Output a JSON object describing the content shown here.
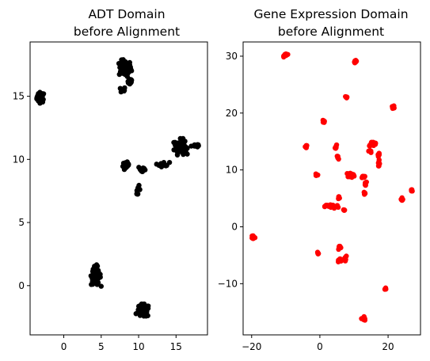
{
  "chart_data": [
    {
      "type": "scatter",
      "title_line1": "ADT Domain",
      "title_line2": "before Alignment",
      "xlabel": "",
      "ylabel": "",
      "xlim": [
        -4.5,
        19.2
      ],
      "ylim": [
        -3.9,
        19.3
      ],
      "x_ticks": [
        0,
        5,
        10,
        15
      ],
      "y_ticks": [
        0,
        5,
        10,
        15
      ],
      "grid": false,
      "marker_color": "#000000",
      "clusters": [
        {
          "x": -3.1,
          "y": 14.9,
          "rx": 0.55,
          "ry": 0.45,
          "n": 45
        },
        {
          "x": 8.2,
          "y": 17.2,
          "rx": 0.9,
          "ry": 0.7,
          "n": 70
        },
        {
          "x": 7.9,
          "y": 15.5,
          "rx": 0.35,
          "ry": 0.25,
          "n": 12
        },
        {
          "x": 8.8,
          "y": 16.2,
          "rx": 0.45,
          "ry": 0.3,
          "n": 18
        },
        {
          "x": 15.6,
          "y": 11.0,
          "rx": 0.9,
          "ry": 0.65,
          "n": 70
        },
        {
          "x": 17.5,
          "y": 11.1,
          "rx": 0.5,
          "ry": 0.15,
          "n": 10
        },
        {
          "x": 13.3,
          "y": 9.6,
          "rx": 0.9,
          "ry": 0.2,
          "n": 22
        },
        {
          "x": 8.3,
          "y": 9.5,
          "rx": 0.45,
          "ry": 0.3,
          "n": 18
        },
        {
          "x": 10.5,
          "y": 9.2,
          "rx": 0.6,
          "ry": 0.3,
          "n": 16
        },
        {
          "x": 9.9,
          "y": 7.6,
          "rx": 0.35,
          "ry": 0.35,
          "n": 10
        },
        {
          "x": 4.3,
          "y": 0.8,
          "rx": 0.7,
          "ry": 0.85,
          "n": 75
        },
        {
          "x": 10.6,
          "y": -2.0,
          "rx": 0.95,
          "ry": 0.55,
          "n": 75
        }
      ]
    },
    {
      "type": "scatter",
      "title_line1": "Gene Expression Domain",
      "title_line2": "before Alignment",
      "xlabel": "",
      "ylabel": "",
      "xlim": [
        -22.5,
        29.5
      ],
      "ylim": [
        -19.0,
        32.5
      ],
      "x_ticks": [
        -20,
        0,
        20
      ],
      "y_ticks": [
        -10,
        0,
        10,
        20,
        30
      ],
      "grid": false,
      "marker_color": "#ff0000",
      "clusters": [
        {
          "x": -10.0,
          "y": 30.2,
          "rx": 0.6,
          "ry": 0.35,
          "n": 12
        },
        {
          "x": 10.5,
          "y": 29.1,
          "rx": 0.5,
          "ry": 0.35,
          "n": 10
        },
        {
          "x": 7.8,
          "y": 22.8,
          "rx": 0.3,
          "ry": 0.2,
          "n": 5
        },
        {
          "x": 21.5,
          "y": 21.0,
          "rx": 0.4,
          "ry": 0.3,
          "n": 6
        },
        {
          "x": 1.0,
          "y": 18.6,
          "rx": 0.6,
          "ry": 0.3,
          "n": 8
        },
        {
          "x": -4.0,
          "y": 14.1,
          "rx": 0.3,
          "ry": 0.3,
          "n": 5
        },
        {
          "x": 4.8,
          "y": 14.0,
          "rx": 0.4,
          "ry": 0.4,
          "n": 8
        },
        {
          "x": 15.5,
          "y": 14.6,
          "rx": 1.3,
          "ry": 0.4,
          "n": 18
        },
        {
          "x": 17.3,
          "y": 12.0,
          "rx": 0.4,
          "ry": 1.3,
          "n": 12
        },
        {
          "x": 14.8,
          "y": 13.3,
          "rx": 0.5,
          "ry": 0.3,
          "n": 6
        },
        {
          "x": 5.2,
          "y": 12.2,
          "rx": 0.3,
          "ry": 0.4,
          "n": 5
        },
        {
          "x": -1.0,
          "y": 9.0,
          "rx": 0.4,
          "ry": 0.3,
          "n": 5
        },
        {
          "x": 9.0,
          "y": 9.1,
          "rx": 1.4,
          "ry": 0.4,
          "n": 22
        },
        {
          "x": 12.6,
          "y": 8.8,
          "rx": 0.6,
          "ry": 0.3,
          "n": 8
        },
        {
          "x": 13.3,
          "y": 7.5,
          "rx": 0.4,
          "ry": 0.4,
          "n": 6
        },
        {
          "x": 13.1,
          "y": 5.9,
          "rx": 0.3,
          "ry": 0.4,
          "n": 5
        },
        {
          "x": 5.5,
          "y": 5.0,
          "rx": 0.4,
          "ry": 0.4,
          "n": 5
        },
        {
          "x": 3.5,
          "y": 3.6,
          "rx": 2.2,
          "ry": 0.4,
          "n": 28
        },
        {
          "x": 7.2,
          "y": 2.9,
          "rx": 0.5,
          "ry": 0.25,
          "n": 5
        },
        {
          "x": 24.0,
          "y": 4.8,
          "rx": 0.4,
          "ry": 0.5,
          "n": 8
        },
        {
          "x": 27.0,
          "y": 6.4,
          "rx": 0.4,
          "ry": 0.3,
          "n": 5
        },
        {
          "x": -19.5,
          "y": -1.8,
          "rx": 0.5,
          "ry": 0.4,
          "n": 10
        },
        {
          "x": 5.8,
          "y": -3.6,
          "rx": 0.5,
          "ry": 0.5,
          "n": 7
        },
        {
          "x": -0.5,
          "y": -4.6,
          "rx": 0.4,
          "ry": 0.3,
          "n": 5
        },
        {
          "x": 7.5,
          "y": -5.4,
          "rx": 0.5,
          "ry": 0.6,
          "n": 7
        },
        {
          "x": 6.0,
          "y": -5.9,
          "rx": 1.1,
          "ry": 0.35,
          "n": 12
        },
        {
          "x": 19.3,
          "y": -11.0,
          "rx": 0.3,
          "ry": 0.3,
          "n": 4
        },
        {
          "x": 12.8,
          "y": -16.2,
          "rx": 0.6,
          "ry": 0.5,
          "n": 12
        }
      ]
    }
  ]
}
